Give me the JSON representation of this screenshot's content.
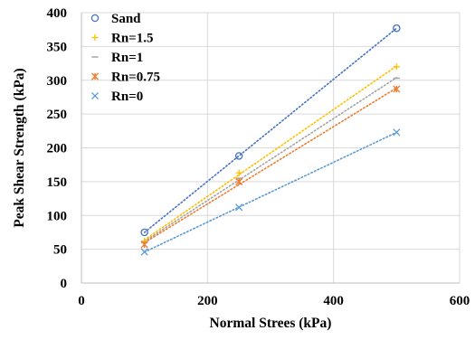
{
  "chart_data": {
    "type": "scatter",
    "title": "",
    "xlabel": "Normal Strees (kPa)",
    "ylabel": "Peak Shear Strength (kPa)",
    "xlim": [
      0,
      600
    ],
    "ylim": [
      0,
      400
    ],
    "xticks": [
      "0",
      "200",
      "400",
      "600"
    ],
    "yticks": [
      "0",
      "50",
      "100",
      "150",
      "200",
      "250",
      "300",
      "350",
      "400"
    ],
    "grid": true,
    "trendlines": "dotted linear",
    "legend_position": "top-left",
    "series": [
      {
        "name": "Sand",
        "marker": "circle",
        "color": "#4472C4",
        "x": [
          100,
          250,
          500
        ],
        "y": [
          75,
          188,
          377
        ]
      },
      {
        "name": "Rn=1.5",
        "marker": "plus",
        "color": "#FFC000",
        "x": [
          100,
          250,
          500
        ],
        "y": [
          62,
          163,
          320
        ]
      },
      {
        "name": "Rn=1",
        "marker": "dash",
        "color": "#A5A5A5",
        "x": [
          100,
          250,
          500
        ],
        "y": [
          60,
          155,
          303
        ]
      },
      {
        "name": "Rn=0.75",
        "marker": "star",
        "color": "#ED7D31",
        "x": [
          100,
          250,
          500
        ],
        "y": [
          57,
          150,
          287
        ]
      },
      {
        "name": "Rn=0",
        "marker": "x",
        "color": "#5B9BD5",
        "x": [
          100,
          250,
          500
        ],
        "y": [
          46,
          112,
          223
        ]
      }
    ]
  }
}
